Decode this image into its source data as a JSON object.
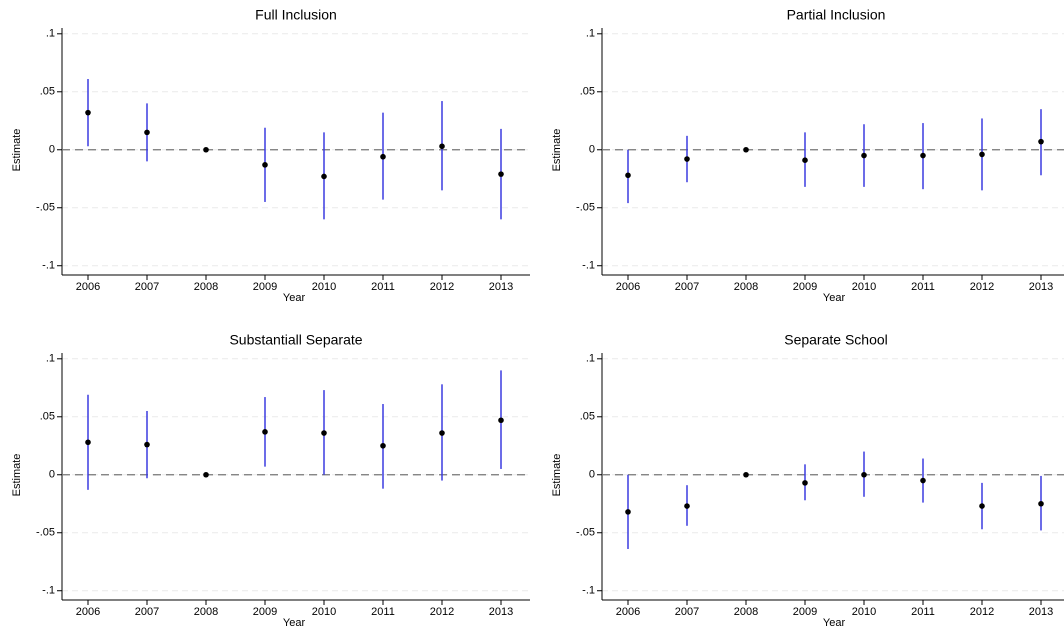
{
  "chart_data": [
    {
      "type": "coefplot",
      "title": "Full Inclusion",
      "xlabel": "Year",
      "ylabel": "Estimate",
      "categories": [
        "2006",
        "2007",
        "2008",
        "2009",
        "2010",
        "2011",
        "2012",
        "2013"
      ],
      "values": [
        0.032,
        0.015,
        0,
        -0.013,
        -0.023,
        -0.006,
        0.003,
        -0.021
      ],
      "lower": [
        0.003,
        -0.01,
        0,
        -0.045,
        -0.06,
        -0.043,
        -0.035,
        -0.06
      ],
      "upper": [
        0.061,
        0.04,
        0,
        0.019,
        0.015,
        0.032,
        0.042,
        0.018
      ],
      "ylim": [
        -0.108,
        0.105
      ],
      "yticks": [
        {
          "value": -0.1,
          "label": "-.1"
        },
        {
          "value": -0.05,
          "label": "-.05"
        },
        0,
        {
          "value": 0.05,
          "label": ".05"
        },
        {
          "value": 0.1,
          "label": ".1"
        }
      ],
      "reference_line": 0,
      "grid": true,
      "color": "#3a3ae0",
      "point_color": "#000000"
    },
    {
      "type": "coefplot",
      "title": "Partial Inclusion",
      "xlabel": "Year",
      "ylabel": "Estimate",
      "categories": [
        "2006",
        "2007",
        "2008",
        "2009",
        "2010",
        "2011",
        "2012",
        "2013"
      ],
      "values": [
        -0.022,
        -0.008,
        0,
        -0.009,
        -0.005,
        -0.005,
        -0.004,
        0.007
      ],
      "lower": [
        -0.046,
        -0.028,
        0,
        -0.032,
        -0.032,
        -0.034,
        -0.035,
        -0.022
      ],
      "upper": [
        0,
        0.012,
        0,
        0.015,
        0.022,
        0.023,
        0.027,
        0.035
      ],
      "ylim": [
        -0.108,
        0.105
      ],
      "yticks": [
        {
          "value": -0.1,
          "label": "-.1"
        },
        {
          "value": -0.05,
          "label": "-.05"
        },
        0,
        {
          "value": 0.05,
          "label": ".05"
        },
        {
          "value": 0.1,
          "label": ".1"
        }
      ],
      "reference_line": 0,
      "grid": true,
      "color": "#3a3ae0",
      "point_color": "#000000"
    },
    {
      "type": "coefplot",
      "title": "Substantiall Separate",
      "xlabel": "Year",
      "ylabel": "Estimate",
      "categories": [
        "2006",
        "2007",
        "2008",
        "2009",
        "2010",
        "2011",
        "2012",
        "2013"
      ],
      "values": [
        0.028,
        0.026,
        0,
        0.037,
        0.036,
        0.025,
        0.036,
        0.047
      ],
      "lower": [
        -0.013,
        -0.003,
        0,
        0.007,
        0,
        -0.012,
        -0.005,
        0.005
      ],
      "upper": [
        0.069,
        0.055,
        0,
        0.067,
        0.073,
        0.061,
        0.078,
        0.09
      ],
      "ylim": [
        -0.108,
        0.105
      ],
      "yticks": [
        {
          "value": -0.1,
          "label": "-.1"
        },
        {
          "value": -0.05,
          "label": "-.05"
        },
        0,
        {
          "value": 0.05,
          "label": ".05"
        },
        {
          "value": 0.1,
          "label": ".1"
        }
      ],
      "reference_line": 0,
      "grid": true,
      "color": "#3a3ae0",
      "point_color": "#000000"
    },
    {
      "type": "coefplot",
      "title": "Separate School",
      "xlabel": "Year",
      "ylabel": "Estimate",
      "categories": [
        "2006",
        "2007",
        "2008",
        "2009",
        "2010",
        "2011",
        "2012",
        "2013"
      ],
      "values": [
        -0.032,
        -0.027,
        0,
        -0.007,
        0,
        -0.005,
        -0.027,
        -0.025
      ],
      "lower": [
        -0.064,
        -0.044,
        0,
        -0.022,
        -0.019,
        -0.024,
        -0.047,
        -0.048
      ],
      "upper": [
        0,
        -0.009,
        0,
        0.009,
        0.02,
        0.014,
        -0.007,
        -0.001
      ],
      "ylim": [
        -0.108,
        0.105
      ],
      "yticks": [
        {
          "value": -0.1,
          "label": "-.1"
        },
        {
          "value": -0.05,
          "label": "-.05"
        },
        0,
        {
          "value": 0.05,
          "label": ".05"
        },
        {
          "value": 0.1,
          "label": ".1"
        }
      ],
      "reference_line": 0,
      "grid": true,
      "color": "#3a3ae0",
      "point_color": "#000000"
    }
  ]
}
